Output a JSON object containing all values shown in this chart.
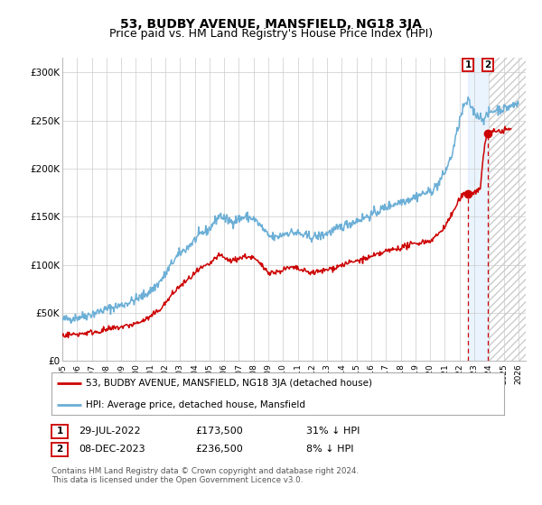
{
  "title": "53, BUDBY AVENUE, MANSFIELD, NG18 3JA",
  "subtitle": "Price paid vs. HM Land Registry's House Price Index (HPI)",
  "ylabel_ticks": [
    "£0",
    "£50K",
    "£100K",
    "£150K",
    "£200K",
    "£250K",
    "£300K"
  ],
  "ytick_values": [
    0,
    50000,
    100000,
    150000,
    200000,
    250000,
    300000
  ],
  "ylim": [
    0,
    315000
  ],
  "xlim_start": 1995.0,
  "xlim_end": 2026.5,
  "xtick_years": [
    1995,
    1996,
    1997,
    1998,
    1999,
    2000,
    2001,
    2002,
    2003,
    2004,
    2005,
    2006,
    2007,
    2008,
    2009,
    2010,
    2011,
    2012,
    2013,
    2014,
    2015,
    2016,
    2017,
    2018,
    2019,
    2020,
    2021,
    2022,
    2023,
    2024,
    2025,
    2026
  ],
  "hpi_color": "#6baed6",
  "sale_color": "#cc0000",
  "marker1_date": 2022.57,
  "marker1_price": 173500,
  "marker2_date": 2023.92,
  "marker2_price": 236500,
  "marker1_label": "1",
  "marker2_label": "2",
  "legend_sale_label": "53, BUDBY AVENUE, MANSFIELD, NG18 3JA (detached house)",
  "legend_hpi_label": "HPI: Average price, detached house, Mansfield",
  "table_row1": [
    "1",
    "29-JUL-2022",
    "£173,500",
    "31% ↓ HPI"
  ],
  "table_row2": [
    "2",
    "08-DEC-2023",
    "£236,500",
    "8% ↓ HPI"
  ],
  "footnote": "Contains HM Land Registry data © Crown copyright and database right 2024.\nThis data is licensed under the Open Government Licence v3.0.",
  "bg_color": "#ffffff",
  "grid_color": "#cccccc",
  "title_fontsize": 10,
  "subtitle_fontsize": 9,
  "tick_fontsize": 7.5,
  "hpi_linewidth": 1.1,
  "sale_linewidth": 1.1,
  "shade_color": "#ddeeff",
  "hatch_color": "#cccccc"
}
